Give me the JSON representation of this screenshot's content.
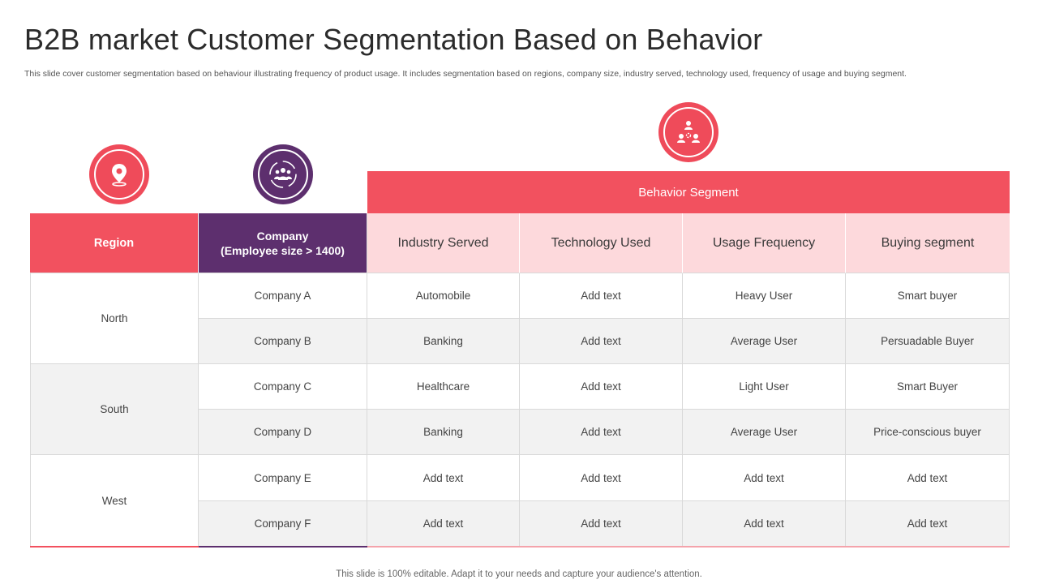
{
  "title": "B2B market Customer Segmentation Based on Behavior",
  "subtitle": "This slide cover customer segmentation based on behaviour illustrating frequency of product usage. It includes segmentation based on regions, company size, industry served, technology used, frequency of  usage and  buying segment.",
  "icons": {
    "region": "map-pin-icon",
    "company": "team-cycle-icon",
    "behavior": "network-people-icon"
  },
  "colors": {
    "accent_red": "#f2515f",
    "accent_purple": "#5d2f6e",
    "pink": "#fdd9dc",
    "grey_row": "#f2f2f2"
  },
  "table": {
    "behavior_group_label": "Behavior Segment",
    "region_header": "Region",
    "company_header_line1": "Company",
    "company_header_line2": "(Employee size > 1400)",
    "behavior_columns": [
      "Industry  Served",
      "Technology  Used",
      "Usage Frequency",
      "Buying segment"
    ],
    "regions": [
      "North",
      "South",
      "West"
    ],
    "rows": [
      {
        "company": "Company A",
        "industry": "Automobile",
        "technology": "Add text",
        "usage": "Heavy  User",
        "buying": "Smart buyer"
      },
      {
        "company": "Company B",
        "industry": "Banking",
        "technology": "Add text",
        "usage": "Average  User",
        "buying": "Persuadable  Buyer"
      },
      {
        "company": "Company C",
        "industry": "Healthcare",
        "technology": "Add text",
        "usage": "Light User",
        "buying": "Smart Buyer"
      },
      {
        "company": "Company D",
        "industry": "Banking",
        "technology": "Add text",
        "usage": "Average  User",
        "buying": "Price-conscious buyer"
      },
      {
        "company": "Company E",
        "industry": "Add text",
        "technology": "Add text",
        "usage": "Add text",
        "buying": "Add text"
      },
      {
        "company": "Company F",
        "industry": "Add text",
        "technology": "Add text",
        "usage": "Add text",
        "buying": "Add text"
      }
    ]
  },
  "footer": "This slide is 100% editable. Adapt it to your needs and capture your audience's attention."
}
